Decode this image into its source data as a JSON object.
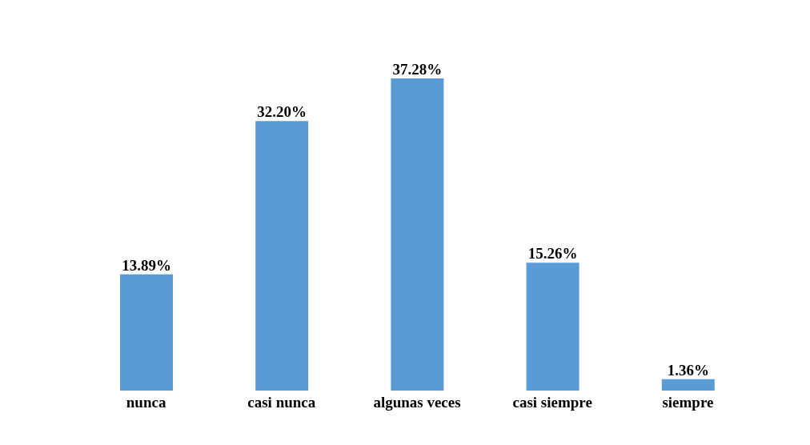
{
  "chart_data": {
    "type": "bar",
    "categories": [
      "nunca",
      "casi nunca",
      "algunas veces",
      "casi siempre",
      "siempre"
    ],
    "values": [
      13.89,
      32.2,
      37.28,
      15.26,
      1.36
    ],
    "value_labels": [
      "13.89%",
      "32.20%",
      "37.28%",
      "15.26%",
      "1.36%"
    ],
    "color": "#5b9bd5"
  }
}
